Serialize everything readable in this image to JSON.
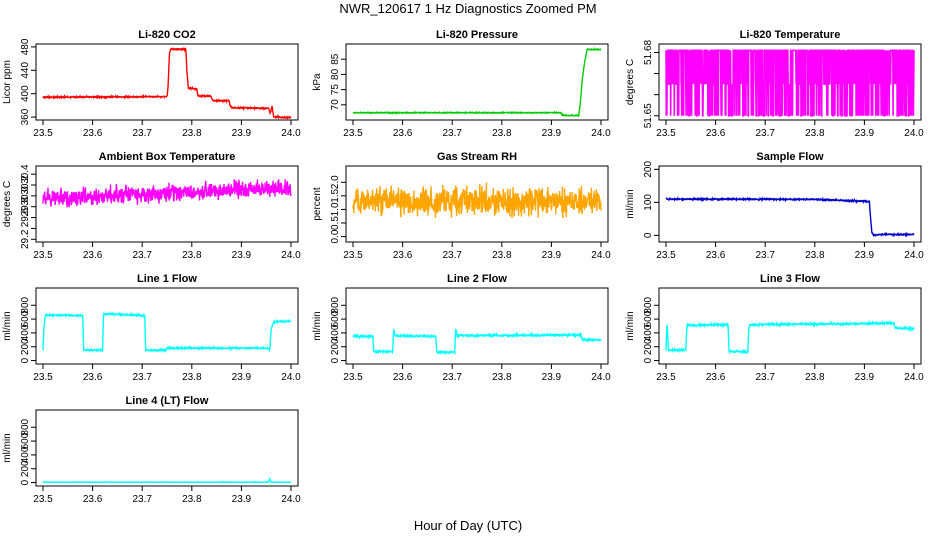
{
  "figure": {
    "title": "NWR_120617  1 Hz Diagnostics Zoomed PM",
    "xlabel": "Hour of Day (UTC)"
  },
  "chart_data": [
    {
      "type": "line",
      "title": "Li-820 CO2",
      "ylabel": "Licor ppm",
      "xlim": [
        23.5,
        24.0
      ],
      "ylim": [
        355,
        485
      ],
      "xticks": [
        "23.5",
        "23.6",
        "23.7",
        "23.8",
        "23.9",
        "24.0"
      ],
      "yticks": [
        "360",
        "400",
        "440",
        "480"
      ],
      "noise": 0.8,
      "series": [
        {
          "color": "#ff0000",
          "x": [
            23.5,
            23.75,
            23.752,
            23.755,
            23.758,
            23.788,
            23.79,
            23.793,
            23.81,
            23.812,
            23.838,
            23.84,
            23.843,
            23.875,
            23.877,
            23.88,
            23.89,
            23.955,
            23.958,
            23.962,
            23.965,
            24.0
          ],
          "y": [
            394,
            395,
            410,
            470,
            476,
            476,
            440,
            410,
            408,
            396,
            396,
            392,
            388,
            388,
            380,
            376,
            376,
            375,
            366,
            378,
            360,
            359
          ]
        }
      ]
    },
    {
      "type": "line",
      "title": "Li-820 Pressure",
      "ylabel": "kPa",
      "xlim": [
        23.5,
        24.0
      ],
      "ylim": [
        65,
        90
      ],
      "xticks": [
        "23.5",
        "23.6",
        "23.7",
        "23.8",
        "23.9",
        "24.0"
      ],
      "yticks": [
        "70",
        "75",
        "80",
        "85"
      ],
      "noise": 0.1,
      "series": [
        {
          "color": "#00cc00",
          "x": [
            23.5,
            23.92,
            23.922,
            23.955,
            23.958,
            23.962,
            23.967,
            23.972,
            24.0
          ],
          "y": [
            67.4,
            67.4,
            66.5,
            66.5,
            70,
            78,
            84,
            88.2,
            88.2
          ]
        }
      ]
    },
    {
      "type": "line",
      "title": "Li-820 Temperature",
      "ylabel": "degrees C",
      "xlim": [
        23.5,
        24.0
      ],
      "ylim": [
        51.648,
        51.684
      ],
      "xticks": [
        "23.5",
        "23.6",
        "23.7",
        "23.8",
        "23.9",
        "24.0"
      ],
      "yticks": [
        "51.65",
        "51.66",
        "51.67",
        "51.68"
      ],
      "yticks_shown": [
        "51.65",
        "51.68"
      ],
      "yaxis_printed": [
        "51.65",
        "51.68"
      ],
      "pattern": "toggle",
      "series": [
        {
          "color": "#ff00ff",
          "levels": [
            51.681,
            51.665,
            51.65
          ],
          "x": [
            23.5,
            24.0
          ],
          "y": [
            51.681,
            51.681
          ]
        }
      ]
    },
    {
      "type": "line",
      "title": "Ambient Box Temperature",
      "ylabel": "degrees C",
      "xlim": [
        23.5,
        24.0
      ],
      "ylim": [
        29.15,
        30.55
      ],
      "xticks": [
        "23.5",
        "23.6",
        "23.7",
        "23.8",
        "23.9",
        "24.0"
      ],
      "yticks": [
        "29.2",
        "29.4",
        "29.6",
        "29.8",
        "30.0",
        "30.2",
        "30.4"
      ],
      "yticks_shown": [
        "29.2",
        "29.6",
        "29.8",
        "30.0",
        "30.2",
        "30.4"
      ],
      "noise": 0.12,
      "series": [
        {
          "color": "#ff00ff",
          "x": [
            23.5,
            23.75,
            24.0
          ],
          "y": [
            29.95,
            30.05,
            30.15
          ]
        }
      ]
    },
    {
      "type": "line",
      "title": "Gas Stream RH",
      "ylabel": "percent",
      "xlim": [
        23.5,
        24.0
      ],
      "ylim": [
        -0.2,
        2.6
      ],
      "xticks": [
        "23.5",
        "23.6",
        "23.7",
        "23.8",
        "23.9",
        "24.0"
      ],
      "yticks": [
        "0.0",
        "0.5",
        "1.0",
        "1.5",
        "2.0"
      ],
      "noise": 0.38,
      "series": [
        {
          "color": "#ffa500",
          "x": [
            23.5,
            24.0
          ],
          "y": [
            1.3,
            1.3
          ]
        }
      ]
    },
    {
      "type": "line",
      "title": "Sample Flow",
      "ylabel": "ml/min",
      "xlim": [
        23.5,
        24.0
      ],
      "ylim": [
        -20,
        210
      ],
      "xticks": [
        "23.5",
        "23.6",
        "23.7",
        "23.8",
        "23.9",
        "24.0"
      ],
      "yticks": [
        "0",
        "100",
        "200"
      ],
      "noise": 1.5,
      "series": [
        {
          "color": "#0000cc",
          "x": [
            23.5,
            23.8,
            23.91,
            23.912,
            23.915,
            23.918,
            23.93,
            24.0
          ],
          "y": [
            110,
            109,
            103,
            60,
            10,
            0,
            3,
            3
          ]
        }
      ]
    },
    {
      "type": "line",
      "title": "Line 1 Flow",
      "ylabel": "ml/min",
      "xlim": [
        23.5,
        24.0
      ],
      "ylim": [
        -50,
        1050
      ],
      "xticks": [
        "23.5",
        "23.6",
        "23.7",
        "23.8",
        "23.9",
        "24.0"
      ],
      "yticks": [
        "0",
        "200",
        "400",
        "600",
        "800"
      ],
      "noise": 8,
      "series": [
        {
          "color": "#00ffff",
          "x": [
            23.5,
            23.502,
            23.505,
            23.58,
            23.582,
            23.62,
            23.622,
            23.625,
            23.705,
            23.707,
            23.748,
            23.75,
            23.955,
            23.957,
            23.96,
            23.965,
            24.0
          ],
          "y": [
            150,
            500,
            660,
            650,
            150,
            150,
            660,
            680,
            650,
            150,
            150,
            180,
            180,
            150,
            450,
            560,
            570
          ]
        }
      ]
    },
    {
      "type": "line",
      "title": "Line 2 Flow",
      "ylabel": "ml/min",
      "xlim": [
        23.5,
        24.0
      ],
      "ylim": [
        -50,
        1050
      ],
      "xticks": [
        "23.5",
        "23.6",
        "23.7",
        "23.8",
        "23.9",
        "24.0"
      ],
      "yticks": [
        "0",
        "200",
        "400",
        "600",
        "800"
      ],
      "noise": 10,
      "series": [
        {
          "color": "#00ffff",
          "x": [
            23.5,
            23.54,
            23.542,
            23.58,
            23.582,
            23.585,
            23.667,
            23.669,
            23.705,
            23.707,
            23.71,
            23.96,
            23.962,
            24.0
          ],
          "y": [
            350,
            350,
            130,
            130,
            460,
            360,
            350,
            120,
            120,
            470,
            360,
            370,
            300,
            300
          ]
        }
      ]
    },
    {
      "type": "line",
      "title": "Line 3 Flow",
      "ylabel": "ml/min",
      "xlim": [
        23.5,
        24.0
      ],
      "ylim": [
        -50,
        1050
      ],
      "xticks": [
        "23.5",
        "23.6",
        "23.7",
        "23.8",
        "23.9",
        "24.0"
      ],
      "yticks": [
        "0",
        "200",
        "400",
        "600",
        "800"
      ],
      "noise": 10,
      "series": [
        {
          "color": "#00ffff",
          "x": [
            23.5,
            23.502,
            23.505,
            23.54,
            23.542,
            23.545,
            23.625,
            23.627,
            23.665,
            23.667,
            23.67,
            23.96,
            23.962,
            24.0
          ],
          "y": [
            150,
            550,
            150,
            150,
            500,
            510,
            520,
            130,
            130,
            480,
            520,
            540,
            470,
            460
          ]
        }
      ]
    },
    {
      "type": "line",
      "title": "Line 4 (LT) Flow",
      "ylabel": "ml/min",
      "xlim": [
        23.5,
        24.0
      ],
      "ylim": [
        -50,
        1050
      ],
      "xticks": [
        "23.5",
        "23.6",
        "23.7",
        "23.8",
        "23.9",
        "24.0"
      ],
      "yticks": [
        "0",
        "200",
        "400",
        "600",
        "800"
      ],
      "noise": 2,
      "series": [
        {
          "color": "#00ffff",
          "x": [
            23.5,
            23.955,
            23.957,
            23.96,
            24.0
          ],
          "y": [
            5,
            5,
            60,
            5,
            5
          ]
        }
      ]
    }
  ]
}
